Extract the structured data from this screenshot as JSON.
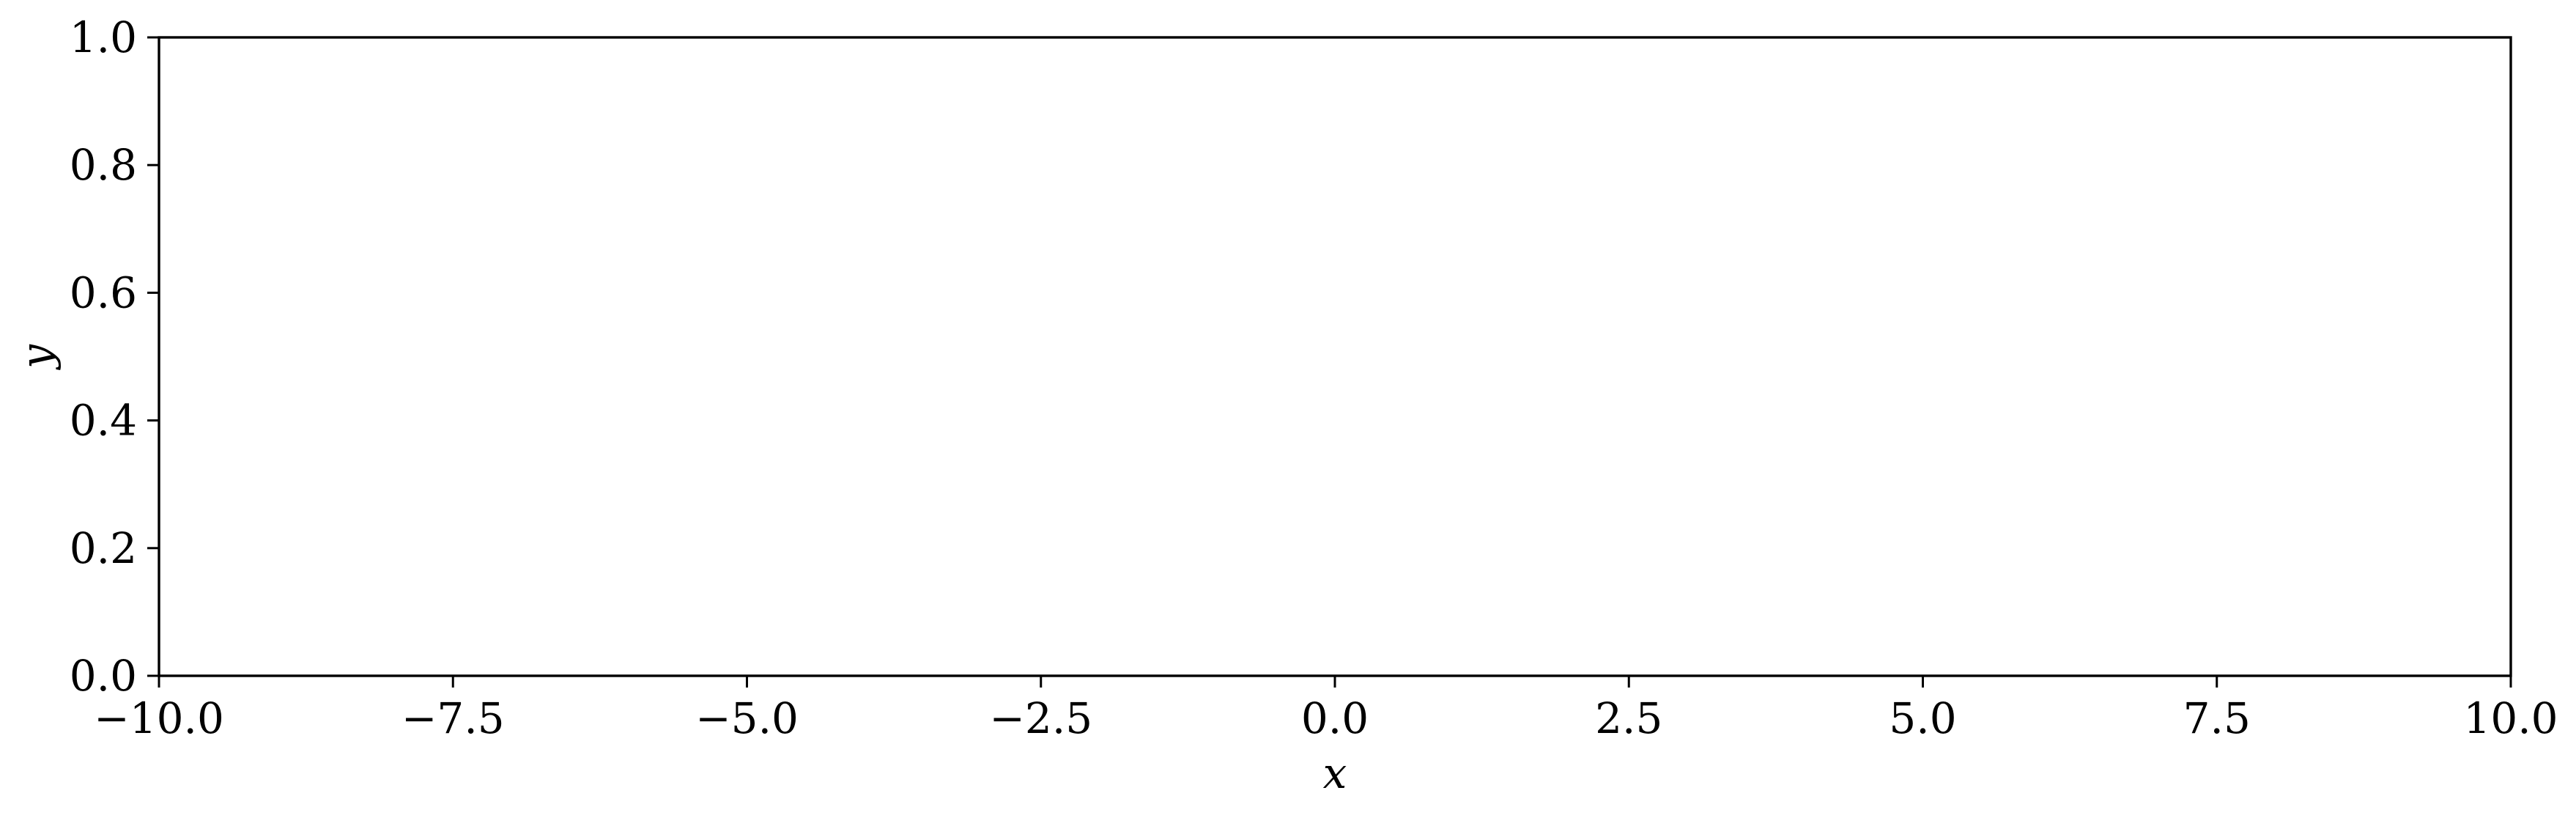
{
  "chart_data": {
    "type": "line",
    "title": "",
    "xlabel": "x",
    "ylabel": "y",
    "xlim": [
      -10.0,
      10.0
    ],
    "ylim": [
      0.0,
      1.0
    ],
    "xticks": [
      -10.0,
      -7.5,
      -5.0,
      -2.5,
      0.0,
      2.5,
      5.0,
      7.5,
      10.0
    ],
    "xtick_labels": [
      "−10.0",
      "−7.5",
      "−5.0",
      "−2.5",
      "0.0",
      "2.5",
      "5.0",
      "7.5",
      "10.0"
    ],
    "yticks": [
      0.0,
      0.2,
      0.4,
      0.6,
      0.8,
      1.0
    ],
    "ytick_labels": [
      "0.0",
      "0.2",
      "0.4",
      "0.6",
      "0.8",
      "1.0"
    ],
    "grid": false,
    "legend": "none",
    "series": []
  },
  "colors": {
    "background": "#ffffff",
    "axes": "#000000",
    "text": "#000000"
  }
}
